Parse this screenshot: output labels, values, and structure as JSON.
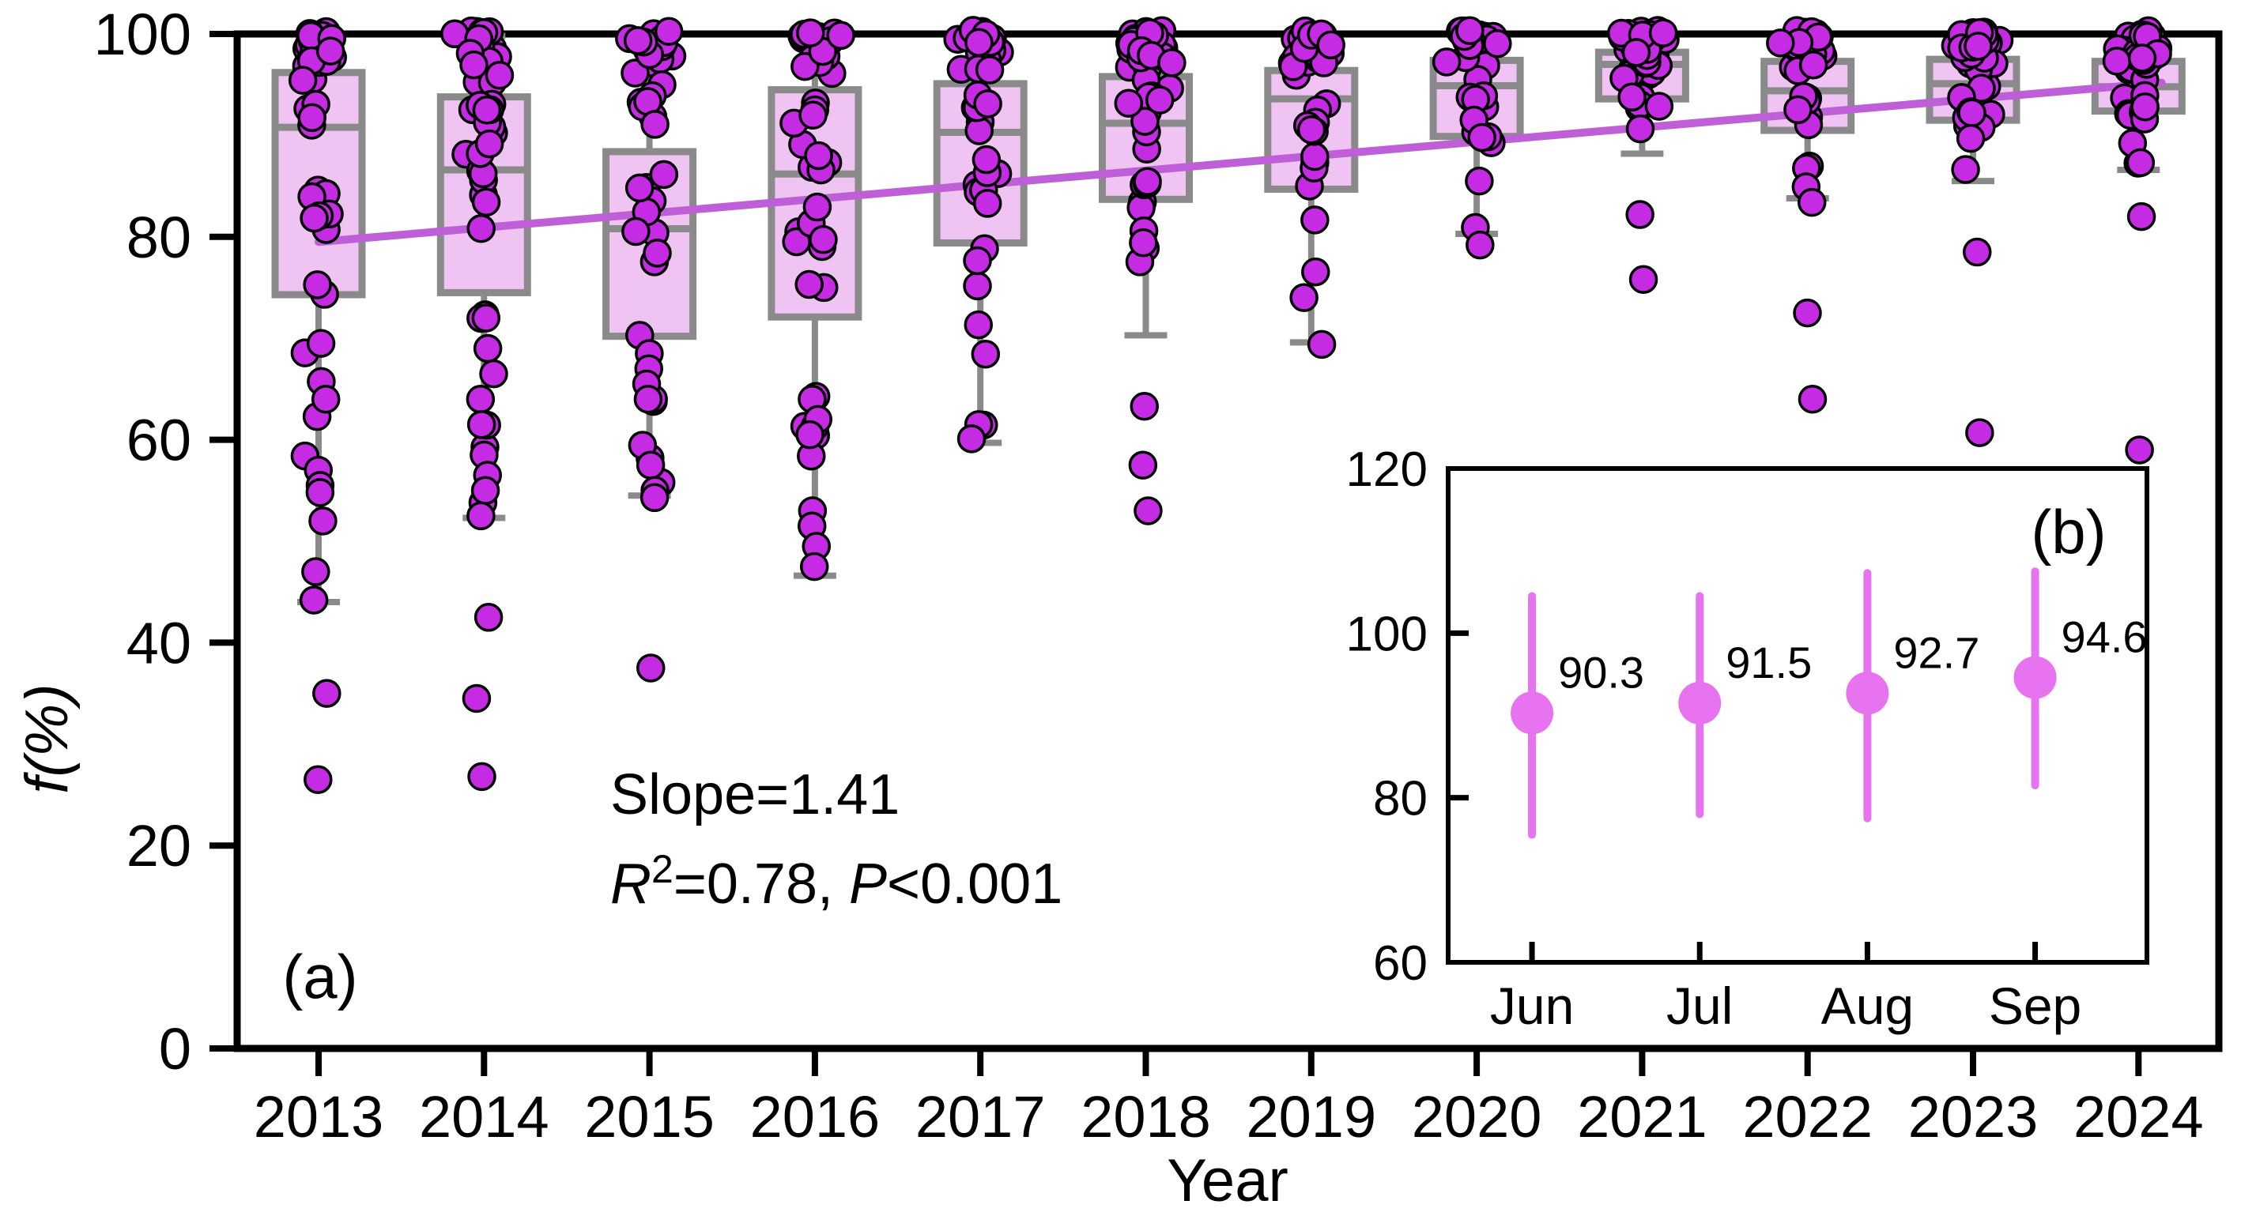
{
  "figure": {
    "panel_a_label": "(a)",
    "panel_b_label": "(b)",
    "x_axis_label": "Year",
    "y_axis_label": "f(%)",
    "annotation": {
      "slope_line": "Slope=1.41",
      "r_sym": "R",
      "r_sup": "2",
      "r_rest": "=0.78, ",
      "p_sym": "P",
      "p_rest": "<0.001"
    }
  },
  "colors": {
    "scatter_fill": "#C52BE3",
    "scatter_edge": "#000000",
    "box_fill": "#EFC3F2",
    "box_edge": "#8A8A8A",
    "whisker": "#8A8A8A",
    "trend_line": "#BE5FD8",
    "inset_marker": "#E873F0",
    "axis": "#000000"
  },
  "jitter_seed": 11,
  "chart_data": [
    {
      "type": "box",
      "title": "",
      "xlabel": "Year",
      "ylabel": "f(%)",
      "ylim": [
        0,
        100
      ],
      "yticks": [
        "0",
        "20",
        "40",
        "60",
        "80",
        "100"
      ],
      "grid": false,
      "legend_position": "none",
      "categories": [
        "2013",
        "2014",
        "2015",
        "2016",
        "2017",
        "2018",
        "2019",
        "2020",
        "2021",
        "2022",
        "2023",
        "2024"
      ],
      "boxes": [
        {
          "year": 2013,
          "q1": 74.3,
          "median": 90.8,
          "q3": 96.2,
          "whisker_low": 44.0,
          "whisker_high": 99.8,
          "outliers_low": [
            69.5,
            64,
            57,
            55.5,
            54.8,
            52,
            47,
            44.2,
            35,
            26.5
          ],
          "n_scatter": 40
        },
        {
          "year": 2014,
          "q1": 74.5,
          "median": 86.6,
          "q3": 93.8,
          "whisker_low": 52.3,
          "whisker_high": 99.8,
          "outliers_low": [
            72,
            69,
            66.5,
            64,
            61.5,
            58.5,
            56.5,
            55,
            52.5,
            42.5,
            34.5,
            26.8
          ],
          "n_scatter": 40
        },
        {
          "year": 2015,
          "q1": 70.2,
          "median": 80.8,
          "q3": 88.4,
          "whisker_low": 54.5,
          "whisker_high": 99.6,
          "outliers_low": [
            68.5,
            67,
            65.5,
            64,
            57.5,
            55,
            54.3,
            37.5
          ],
          "n_scatter": 38
        },
        {
          "year": 2016,
          "q1": 72.1,
          "median": 86.2,
          "q3": 94.5,
          "whisker_low": 46.6,
          "whisker_high": 99.8,
          "outliers_low": [
            64,
            62,
            60.5,
            53,
            51.5,
            49.5,
            47.5
          ],
          "n_scatter": 40
        },
        {
          "year": 2017,
          "q1": 79.4,
          "median": 90.3,
          "q3": 95.1,
          "whisker_low": 59.7,
          "whisker_high": 99.8,
          "outliers_low": [
            61.5,
            60.1
          ],
          "n_scatter": 42
        },
        {
          "year": 2018,
          "q1": 83.7,
          "median": 91.2,
          "q3": 95.8,
          "whisker_low": 70.3,
          "whisker_high": 99.8,
          "outliers_low": [
            63.3,
            57.5,
            53
          ],
          "n_scatter": 42
        },
        {
          "year": 2019,
          "q1": 84.7,
          "median": 93.6,
          "q3": 96.4,
          "whisker_low": 69.6,
          "whisker_high": 99.6,
          "outliers_low": [
            69.4
          ],
          "n_scatter": 40
        },
        {
          "year": 2020,
          "q1": 89.9,
          "median": 94.9,
          "q3": 97.4,
          "whisker_low": 80.3,
          "whisker_high": 99.8,
          "outliers_low": [
            79.2
          ],
          "n_scatter": 45
        },
        {
          "year": 2021,
          "q1": 93.6,
          "median": 97.0,
          "q3": 98.2,
          "whisker_low": 88.2,
          "whisker_high": 100.0,
          "outliers_low": [
            82.2,
            75.8
          ],
          "n_scatter": 42
        },
        {
          "year": 2022,
          "q1": 90.5,
          "median": 94.4,
          "q3": 97.3,
          "whisker_low": 83.8,
          "whisker_high": 99.5,
          "outliers_low": [
            83.4,
            72.5,
            64
          ],
          "n_scatter": 40
        },
        {
          "year": 2023,
          "q1": 91.5,
          "median": 95.1,
          "q3": 97.5,
          "whisker_low": 85.5,
          "whisker_high": 99.8,
          "outliers_low": [
            78.5,
            60.7
          ],
          "n_scatter": 38
        },
        {
          "year": 2024,
          "q1": 92.4,
          "median": 94.8,
          "q3": 97.3,
          "whisker_low": 86.6,
          "whisker_high": 99.9,
          "outliers_low": [
            82,
            59
          ],
          "n_scatter": 38
        }
      ],
      "trend_line": {
        "slope_per_year": 1.41,
        "r_squared": 0.78,
        "p_value": "<0.001",
        "start": {
          "year": 2013.0,
          "value": 79.5
        },
        "end": {
          "year": 2024.14,
          "value": 95.2
        }
      }
    },
    {
      "type": "scatter",
      "subtype": "mean-with-error-bars",
      "title": "",
      "xlabel": "",
      "ylabel": "",
      "ylim": [
        60,
        120
      ],
      "yticks": [
        "60",
        "80",
        "100",
        "120"
      ],
      "categories": [
        "Jun",
        "Jul",
        "Aug",
        "Sep"
      ],
      "means": [
        90.3,
        91.5,
        92.7,
        94.6
      ],
      "err_low": [
        75.5,
        78.0,
        77.5,
        81.5
      ],
      "err_high": [
        104.5,
        104.5,
        107.3,
        107.5
      ],
      "point_labels": [
        "90.3",
        "91.5",
        "92.7",
        "94.6"
      ]
    }
  ]
}
